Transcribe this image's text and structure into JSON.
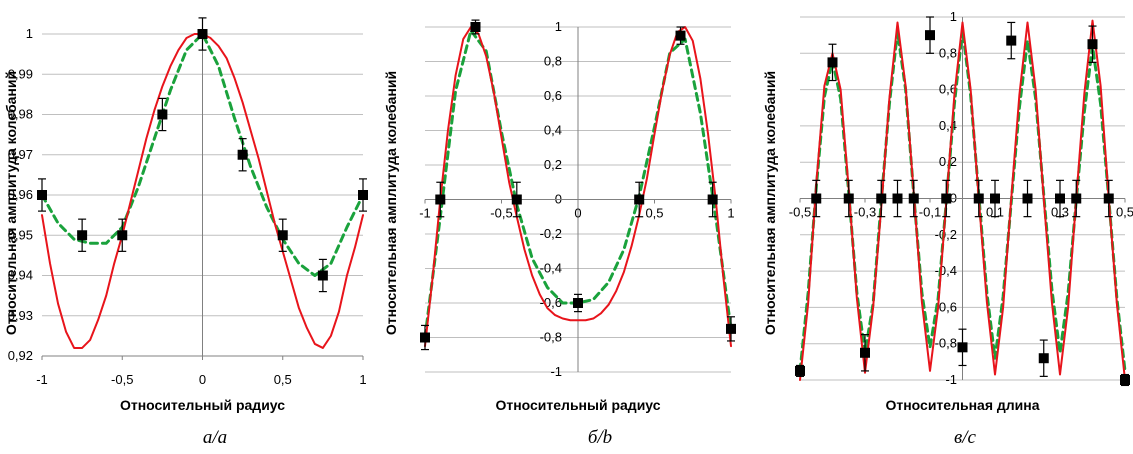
{
  "colors": {
    "theory": "#e8141b",
    "fit": "#1aa23c",
    "points": "#000000",
    "grid": "#bfbfbf",
    "axis": "#808080"
  },
  "chart_data": [
    {
      "type": "line",
      "caption": "а/a",
      "xlabel": "Относительный радиус",
      "ylabel": "Относительная амплитуда колебаний",
      "xlim": [
        -1,
        1
      ],
      "ylim": [
        0.92,
        1
      ],
      "grid": "horizontal",
      "xticks": [
        "-1",
        "-0,5",
        "0",
        "0,5",
        "1"
      ],
      "yticks": [
        "0,92",
        "0,93",
        "0,94",
        "0,95",
        "0,96",
        "0,97",
        "0,98",
        "0,99",
        "1"
      ],
      "series": [
        {
          "kind": "experiment",
          "x": [
            -1,
            -0.75,
            -0.5,
            -0.25,
            0,
            0.25,
            0.5,
            0.75,
            1
          ],
          "y": [
            0.96,
            0.95,
            0.95,
            0.98,
            1,
            0.97,
            0.95,
            0.94,
            0.96
          ],
          "err": [
            0.004,
            0.004,
            0.004,
            0.004,
            0.004,
            0.004,
            0.004,
            0.004,
            0.004
          ]
        },
        {
          "kind": "fit",
          "style": "dashed",
          "x": [
            -1,
            -0.9,
            -0.8,
            -0.7,
            -0.6,
            -0.5,
            -0.4,
            -0.3,
            -0.2,
            -0.1,
            0,
            0.1,
            0.2,
            0.3,
            0.4,
            0.5,
            0.6,
            0.7,
            0.8,
            0.9,
            1
          ],
          "y": [
            0.96,
            0.953,
            0.949,
            0.948,
            0.948,
            0.952,
            0.962,
            0.974,
            0.986,
            0.996,
            1.0,
            0.992,
            0.979,
            0.967,
            0.957,
            0.949,
            0.943,
            0.94,
            0.943,
            0.952,
            0.96
          ]
        },
        {
          "kind": "theory",
          "style": "solid",
          "x": [
            -1,
            -0.95,
            -0.9,
            -0.85,
            -0.8,
            -0.75,
            -0.7,
            -0.65,
            -0.6,
            -0.55,
            -0.5,
            -0.45,
            -0.4,
            -0.35,
            -0.3,
            -0.25,
            -0.2,
            -0.15,
            -0.1,
            -0.05,
            0,
            0.05,
            0.1,
            0.15,
            0.2,
            0.25,
            0.3,
            0.35,
            0.4,
            0.45,
            0.5,
            0.55,
            0.6,
            0.65,
            0.7,
            0.75,
            0.8,
            0.85,
            0.9,
            0.95,
            1
          ],
          "y": [
            0.955,
            0.943,
            0.933,
            0.926,
            0.922,
            0.922,
            0.924,
            0.929,
            0.935,
            0.943,
            0.95,
            0.958,
            0.966,
            0.974,
            0.981,
            0.987,
            0.992,
            0.996,
            0.999,
            1.0,
            1.0,
            0.999,
            0.997,
            0.994,
            0.989,
            0.983,
            0.976,
            0.969,
            0.961,
            0.953,
            0.946,
            0.939,
            0.932,
            0.927,
            0.923,
            0.922,
            0.925,
            0.931,
            0.94,
            0.947,
            0.955
          ]
        }
      ]
    },
    {
      "type": "line",
      "caption": "б/b",
      "xlabel": "Относительный радиус",
      "ylabel": "Относительная амплитуда колебаний",
      "xlim": [
        -1,
        1
      ],
      "ylim": [
        -1,
        1
      ],
      "grid": "horizontal",
      "xticks": [
        "-1",
        "-0,5",
        "0",
        "0,5",
        "1"
      ],
      "yticks": [
        "-1",
        "-0,8",
        "-0,6",
        "-0,4",
        "-0,2",
        "0",
        "0,2",
        "0,4",
        "0,6",
        "0,8",
        "1"
      ],
      "series": [
        {
          "kind": "experiment",
          "x": [
            -1,
            -0.9,
            -0.67,
            -0.4,
            0,
            0.4,
            0.67,
            0.88,
            1
          ],
          "y": [
            -0.8,
            0,
            1.0,
            0,
            -0.6,
            0,
            0.95,
            0,
            -0.75
          ],
          "err": [
            0.07,
            0.1,
            0.04,
            0.1,
            0.05,
            0.1,
            0.05,
            0.1,
            0.07
          ]
        },
        {
          "kind": "fit",
          "style": "dashed",
          "x": [
            -1,
            -0.9,
            -0.8,
            -0.7,
            -0.6,
            -0.5,
            -0.4,
            -0.3,
            -0.2,
            -0.1,
            0,
            0.1,
            0.2,
            0.3,
            0.4,
            0.5,
            0.6,
            0.7,
            0.8,
            0.9,
            1
          ],
          "y": [
            -0.8,
            -0.1,
            0.63,
            0.98,
            0.86,
            0.39,
            -0.03,
            -0.34,
            -0.51,
            -0.6,
            -0.6,
            -0.58,
            -0.48,
            -0.29,
            0.02,
            0.42,
            0.85,
            0.93,
            0.5,
            -0.1,
            -0.75
          ]
        },
        {
          "kind": "theory",
          "style": "solid",
          "x": [
            -1,
            -0.95,
            -0.9,
            -0.85,
            -0.8,
            -0.75,
            -0.7,
            -0.65,
            -0.6,
            -0.55,
            -0.5,
            -0.45,
            -0.4,
            -0.35,
            -0.3,
            -0.25,
            -0.2,
            -0.15,
            -0.1,
            -0.05,
            0,
            0.05,
            0.1,
            0.15,
            0.2,
            0.25,
            0.3,
            0.35,
            0.4,
            0.45,
            0.5,
            0.55,
            0.6,
            0.65,
            0.7,
            0.75,
            0.8,
            0.85,
            0.9,
            0.95,
            1
          ],
          "y": [
            -0.85,
            -0.45,
            0.0,
            0.4,
            0.72,
            0.93,
            1.0,
            0.96,
            0.83,
            0.62,
            0.36,
            0.1,
            -0.1,
            -0.29,
            -0.44,
            -0.55,
            -0.63,
            -0.67,
            -0.69,
            -0.7,
            -0.7,
            -0.7,
            -0.69,
            -0.66,
            -0.61,
            -0.53,
            -0.42,
            -0.27,
            -0.09,
            0.12,
            0.38,
            0.63,
            0.84,
            0.97,
            1.0,
            0.92,
            0.7,
            0.38,
            0.0,
            -0.45,
            -0.85
          ]
        }
      ]
    },
    {
      "type": "line",
      "caption": "в/c",
      "xlabel": "Относительная длина",
      "ylabel": "Относительная амплитуда колебаний",
      "xlim": [
        -0.5,
        0.5
      ],
      "ylim": [
        -1,
        1
      ],
      "grid": "horizontal",
      "xticks": [
        "-0,5",
        "-0,3",
        "-0,1",
        "0,1",
        "0,3",
        "0,5"
      ],
      "yticks": [
        "-1",
        "-0,8",
        "-0,6",
        "-0,4",
        "-0,2",
        "0",
        "0,2",
        "0,4",
        "0,6",
        "0,8",
        "1"
      ],
      "series": [
        {
          "kind": "experiment",
          "x": [
            -0.5,
            -0.45,
            -0.4,
            -0.35,
            -0.3,
            -0.25,
            -0.2,
            -0.15,
            -0.1,
            -0.05,
            0,
            0.05,
            0.1,
            0.15,
            0.2,
            0.25,
            0.3,
            0.35,
            0.4,
            0.45,
            0.5
          ],
          "y": [
            -0.95,
            0,
            0.75,
            0,
            -0.85,
            0,
            0,
            0,
            0.9,
            0,
            -0.82,
            0,
            0,
            0.87,
            0,
            -0.88,
            0,
            0,
            0.85,
            0,
            -1.0
          ],
          "err": [
            0.03,
            0.1,
            0.1,
            0.1,
            0.1,
            0.1,
            0.1,
            0.1,
            0.1,
            0.1,
            0.1,
            0.1,
            0.1,
            0.1,
            0.1,
            0.1,
            0.1,
            0.1,
            0.1,
            0.1,
            0.03
          ]
        },
        {
          "kind": "fit",
          "style": "dashed",
          "x": [
            -0.5,
            -0.475,
            -0.45,
            -0.425,
            -0.4,
            -0.375,
            -0.35,
            -0.325,
            -0.3,
            -0.275,
            -0.25,
            -0.225,
            -0.2,
            -0.175,
            -0.15,
            -0.125,
            -0.1,
            -0.075,
            -0.05,
            -0.025,
            0,
            0.025,
            0.05,
            0.075,
            0.1,
            0.125,
            0.15,
            0.175,
            0.2,
            0.225,
            0.25,
            0.275,
            0.3,
            0.325,
            0.35,
            0.375,
            0.4,
            0.425,
            0.45,
            0.475,
            0.5
          ],
          "y": [
            -0.95,
            -0.52,
            0.06,
            0.56,
            0.76,
            0.55,
            0.03,
            -0.52,
            -0.85,
            -0.58,
            -0.02,
            0.52,
            0.92,
            0.6,
            0.02,
            -0.52,
            -0.82,
            -0.55,
            -0.02,
            0.52,
            0.93,
            0.57,
            0.02,
            -0.52,
            -0.88,
            -0.54,
            -0.02,
            0.5,
            0.87,
            0.55,
            0.02,
            -0.5,
            -0.85,
            -0.52,
            -0.01,
            0.48,
            0.84,
            0.52,
            0.0,
            -0.55,
            -0.95
          ]
        },
        {
          "kind": "theory",
          "style": "solid",
          "x": [
            -0.5,
            -0.475,
            -0.45,
            -0.425,
            -0.4,
            -0.375,
            -0.35,
            -0.325,
            -0.3,
            -0.275,
            -0.25,
            -0.225,
            -0.2,
            -0.175,
            -0.15,
            -0.125,
            -0.1,
            -0.075,
            -0.05,
            -0.025,
            0,
            0.025,
            0.05,
            0.075,
            0.1,
            0.125,
            0.15,
            0.175,
            0.2,
            0.225,
            0.25,
            0.275,
            0.3,
            0.325,
            0.35,
            0.375,
            0.4,
            0.425,
            0.45,
            0.475,
            0.5
          ],
          "y": [
            -1.0,
            -0.58,
            0.08,
            0.62,
            0.8,
            0.6,
            0.05,
            -0.55,
            -0.96,
            -0.6,
            -0.05,
            0.55,
            0.97,
            0.62,
            0.03,
            -0.57,
            -0.95,
            -0.6,
            -0.02,
            0.57,
            0.97,
            0.6,
            0.0,
            -0.57,
            -0.97,
            -0.6,
            0.0,
            0.57,
            0.97,
            0.6,
            0.0,
            -0.57,
            -0.97,
            -0.6,
            0.0,
            0.58,
            0.98,
            0.62,
            0.0,
            -0.58,
            -1.0
          ]
        }
      ]
    }
  ]
}
